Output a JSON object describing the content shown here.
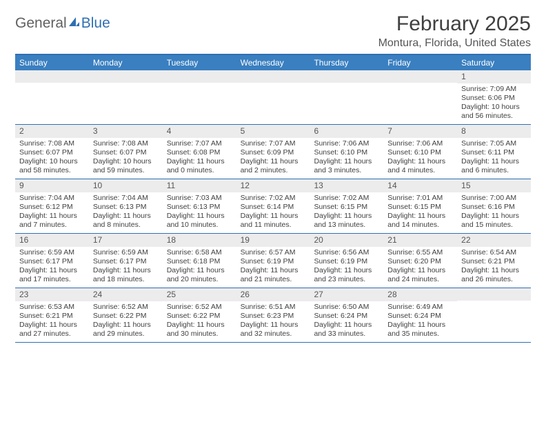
{
  "colors": {
    "header_bg": "#3a7fc0",
    "header_text": "#ffffff",
    "border": "#2f6fb3",
    "daynum_bg": "#ececec",
    "body_text": "#404040",
    "subtitle_text": "#555555",
    "logo_gray": "#606060",
    "logo_blue": "#2f6fb3",
    "page_bg": "#ffffff"
  },
  "fonts": {
    "title_size_pt": 30,
    "subtitle_size_pt": 16,
    "weekday_size_pt": 12,
    "daynum_size_pt": 12,
    "body_size_pt": 10.5
  },
  "logo": {
    "part1": "General",
    "part2": "Blue"
  },
  "title": "February 2025",
  "subtitle": "Montura, Florida, United States",
  "weekdays": [
    "Sunday",
    "Monday",
    "Tuesday",
    "Wednesday",
    "Thursday",
    "Friday",
    "Saturday"
  ],
  "weeks": [
    [
      null,
      null,
      null,
      null,
      null,
      null,
      {
        "n": "1",
        "sr": "Sunrise: 7:09 AM",
        "ss": "Sunset: 6:06 PM",
        "dl1": "Daylight: 10 hours",
        "dl2": "and 56 minutes."
      }
    ],
    [
      {
        "n": "2",
        "sr": "Sunrise: 7:08 AM",
        "ss": "Sunset: 6:07 PM",
        "dl1": "Daylight: 10 hours",
        "dl2": "and 58 minutes."
      },
      {
        "n": "3",
        "sr": "Sunrise: 7:08 AM",
        "ss": "Sunset: 6:07 PM",
        "dl1": "Daylight: 10 hours",
        "dl2": "and 59 minutes."
      },
      {
        "n": "4",
        "sr": "Sunrise: 7:07 AM",
        "ss": "Sunset: 6:08 PM",
        "dl1": "Daylight: 11 hours",
        "dl2": "and 0 minutes."
      },
      {
        "n": "5",
        "sr": "Sunrise: 7:07 AM",
        "ss": "Sunset: 6:09 PM",
        "dl1": "Daylight: 11 hours",
        "dl2": "and 2 minutes."
      },
      {
        "n": "6",
        "sr": "Sunrise: 7:06 AM",
        "ss": "Sunset: 6:10 PM",
        "dl1": "Daylight: 11 hours",
        "dl2": "and 3 minutes."
      },
      {
        "n": "7",
        "sr": "Sunrise: 7:06 AM",
        "ss": "Sunset: 6:10 PM",
        "dl1": "Daylight: 11 hours",
        "dl2": "and 4 minutes."
      },
      {
        "n": "8",
        "sr": "Sunrise: 7:05 AM",
        "ss": "Sunset: 6:11 PM",
        "dl1": "Daylight: 11 hours",
        "dl2": "and 6 minutes."
      }
    ],
    [
      {
        "n": "9",
        "sr": "Sunrise: 7:04 AM",
        "ss": "Sunset: 6:12 PM",
        "dl1": "Daylight: 11 hours",
        "dl2": "and 7 minutes."
      },
      {
        "n": "10",
        "sr": "Sunrise: 7:04 AM",
        "ss": "Sunset: 6:13 PM",
        "dl1": "Daylight: 11 hours",
        "dl2": "and 8 minutes."
      },
      {
        "n": "11",
        "sr": "Sunrise: 7:03 AM",
        "ss": "Sunset: 6:13 PM",
        "dl1": "Daylight: 11 hours",
        "dl2": "and 10 minutes."
      },
      {
        "n": "12",
        "sr": "Sunrise: 7:02 AM",
        "ss": "Sunset: 6:14 PM",
        "dl1": "Daylight: 11 hours",
        "dl2": "and 11 minutes."
      },
      {
        "n": "13",
        "sr": "Sunrise: 7:02 AM",
        "ss": "Sunset: 6:15 PM",
        "dl1": "Daylight: 11 hours",
        "dl2": "and 13 minutes."
      },
      {
        "n": "14",
        "sr": "Sunrise: 7:01 AM",
        "ss": "Sunset: 6:15 PM",
        "dl1": "Daylight: 11 hours",
        "dl2": "and 14 minutes."
      },
      {
        "n": "15",
        "sr": "Sunrise: 7:00 AM",
        "ss": "Sunset: 6:16 PM",
        "dl1": "Daylight: 11 hours",
        "dl2": "and 15 minutes."
      }
    ],
    [
      {
        "n": "16",
        "sr": "Sunrise: 6:59 AM",
        "ss": "Sunset: 6:17 PM",
        "dl1": "Daylight: 11 hours",
        "dl2": "and 17 minutes."
      },
      {
        "n": "17",
        "sr": "Sunrise: 6:59 AM",
        "ss": "Sunset: 6:17 PM",
        "dl1": "Daylight: 11 hours",
        "dl2": "and 18 minutes."
      },
      {
        "n": "18",
        "sr": "Sunrise: 6:58 AM",
        "ss": "Sunset: 6:18 PM",
        "dl1": "Daylight: 11 hours",
        "dl2": "and 20 minutes."
      },
      {
        "n": "19",
        "sr": "Sunrise: 6:57 AM",
        "ss": "Sunset: 6:19 PM",
        "dl1": "Daylight: 11 hours",
        "dl2": "and 21 minutes."
      },
      {
        "n": "20",
        "sr": "Sunrise: 6:56 AM",
        "ss": "Sunset: 6:19 PM",
        "dl1": "Daylight: 11 hours",
        "dl2": "and 23 minutes."
      },
      {
        "n": "21",
        "sr": "Sunrise: 6:55 AM",
        "ss": "Sunset: 6:20 PM",
        "dl1": "Daylight: 11 hours",
        "dl2": "and 24 minutes."
      },
      {
        "n": "22",
        "sr": "Sunrise: 6:54 AM",
        "ss": "Sunset: 6:21 PM",
        "dl1": "Daylight: 11 hours",
        "dl2": "and 26 minutes."
      }
    ],
    [
      {
        "n": "23",
        "sr": "Sunrise: 6:53 AM",
        "ss": "Sunset: 6:21 PM",
        "dl1": "Daylight: 11 hours",
        "dl2": "and 27 minutes."
      },
      {
        "n": "24",
        "sr": "Sunrise: 6:52 AM",
        "ss": "Sunset: 6:22 PM",
        "dl1": "Daylight: 11 hours",
        "dl2": "and 29 minutes."
      },
      {
        "n": "25",
        "sr": "Sunrise: 6:52 AM",
        "ss": "Sunset: 6:22 PM",
        "dl1": "Daylight: 11 hours",
        "dl2": "and 30 minutes."
      },
      {
        "n": "26",
        "sr": "Sunrise: 6:51 AM",
        "ss": "Sunset: 6:23 PM",
        "dl1": "Daylight: 11 hours",
        "dl2": "and 32 minutes."
      },
      {
        "n": "27",
        "sr": "Sunrise: 6:50 AM",
        "ss": "Sunset: 6:24 PM",
        "dl1": "Daylight: 11 hours",
        "dl2": "and 33 minutes."
      },
      {
        "n": "28",
        "sr": "Sunrise: 6:49 AM",
        "ss": "Sunset: 6:24 PM",
        "dl1": "Daylight: 11 hours",
        "dl2": "and 35 minutes."
      },
      null
    ]
  ]
}
